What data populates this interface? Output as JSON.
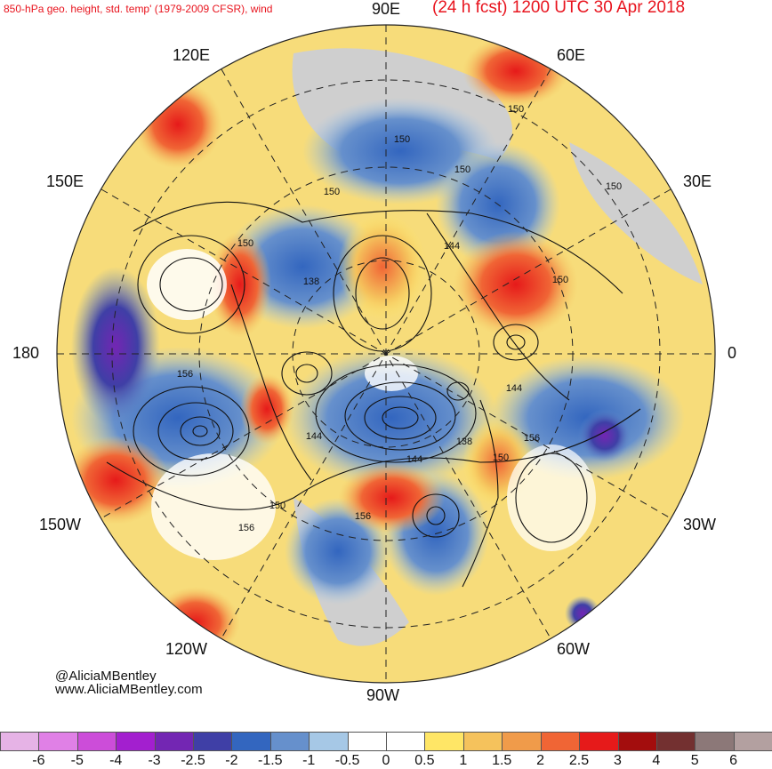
{
  "title_left": "850-hPa geo. height, std. temp' (1979-2009 CFSR), wind",
  "title_right": "(24 h fcst) 1200 UTC 30 Apr 2018",
  "longitude_labels": {
    "lon_90E": "90E",
    "lon_60E": "60E",
    "lon_120E": "120E",
    "lon_150E": "150E",
    "lon_30E": "30E",
    "lon_180": "180",
    "lon_0": "0",
    "lon_150W": "150W",
    "lon_30W": "30W",
    "lon_120W": "120W",
    "lon_60W": "60W",
    "lon_90W": "90W"
  },
  "contour_labels": [
    "150",
    "150",
    "150",
    "150",
    "150",
    "150",
    "138",
    "144",
    "150",
    "156",
    "144",
    "138",
    "156",
    "150",
    "144",
    "156",
    "150",
    "156",
    "144"
  ],
  "credits": {
    "handle": "@AliciaMBentley",
    "website": "www.AliciaMBentley.com"
  },
  "colorbar": {
    "colors": [
      "#e6b3e6",
      "#e080e6",
      "#cc4dd9",
      "#a31fcf",
      "#7326b3",
      "#3f3fa6",
      "#3366bf",
      "#6690cc",
      "#a6c8e6",
      "#ffffff",
      "#ffffff",
      "#ffe666",
      "#f5c25c",
      "#f09b4a",
      "#f06535",
      "#e61a1a",
      "#a30d0d",
      "#733030",
      "#8c7878",
      "#b3a0a0"
    ],
    "tick_labels": [
      "-6",
      "-5",
      "-4",
      "-3",
      "-2.5",
      "-2",
      "-1.5",
      "-1",
      "-0.5",
      "0",
      "0.5",
      "1",
      "1.5",
      "2",
      "2.5",
      "3",
      "4",
      "5",
      "6"
    ]
  }
}
